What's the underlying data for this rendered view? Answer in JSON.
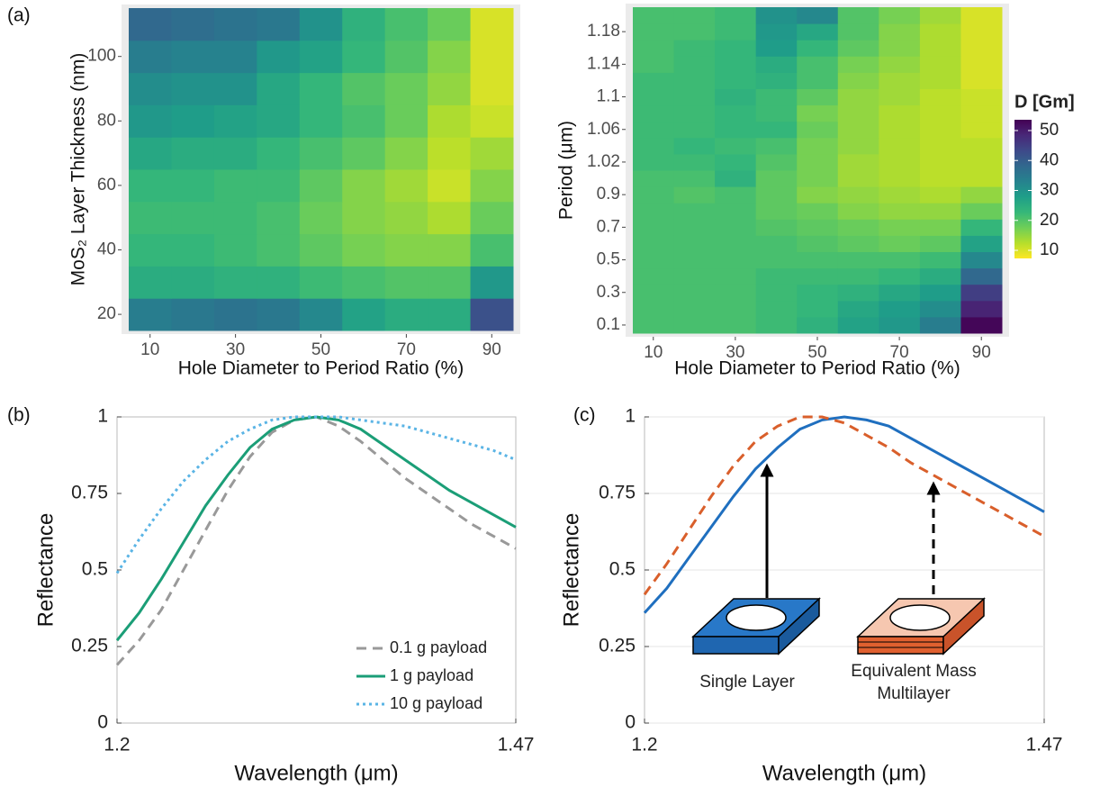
{
  "chart_data": [
    {
      "type": "heatmap",
      "panel_label": "(a)",
      "x_label": "Hole Diameter to Period Ratio (%)",
      "y_label": "MoS₂ Layer Thickness (nm)",
      "x": [
        10,
        20,
        30,
        40,
        50,
        60,
        70,
        80,
        90
      ],
      "xlim": [
        5,
        95
      ],
      "xticks": [
        10,
        30,
        50,
        70,
        90
      ],
      "y": [
        20,
        30,
        40,
        50,
        60,
        70,
        80,
        90,
        100,
        110
      ],
      "ylim": [
        15,
        115
      ],
      "yticks": [
        20,
        40,
        60,
        80,
        100
      ],
      "z": [
        [
          34,
          35,
          36,
          35,
          32,
          27,
          25,
          25,
          42
        ],
        [
          25,
          25,
          24,
          24,
          22,
          21,
          20,
          20,
          29
        ],
        [
          23,
          23,
          22,
          21,
          19,
          17,
          16,
          16,
          21
        ],
        [
          22,
          22,
          22,
          21,
          18,
          16,
          15,
          13,
          18
        ],
        [
          23,
          23,
          22,
          22,
          19,
          16,
          14,
          11,
          16
        ],
        [
          26,
          25,
          25,
          23,
          21,
          19,
          16,
          12,
          14
        ],
        [
          29,
          28,
          27,
          26,
          23,
          21,
          18,
          13,
          11
        ],
        [
          31,
          30,
          30,
          26,
          23,
          20,
          18,
          15,
          10
        ],
        [
          34,
          33,
          33,
          29,
          27,
          23,
          20,
          16,
          10
        ],
        [
          38,
          37,
          36,
          35,
          30,
          24,
          21,
          18,
          10
        ]
      ],
      "zlim": [
        7.3,
        53.6
      ],
      "colorscale": [
        "#fde725",
        "#b5de2b",
        "#6ece58",
        "#35b779",
        "#1f9e89",
        "#26828e",
        "#31688e",
        "#3e4989",
        "#482878",
        "#440154"
      ]
    },
    {
      "type": "heatmap",
      "x_label": "Hole Diameter to Period Ratio (%)",
      "y_label": "Period (μm)",
      "x": [
        10,
        20,
        30,
        40,
        50,
        60,
        70,
        80,
        90
      ],
      "xlim": [
        5,
        95
      ],
      "xticks": [
        10,
        30,
        50,
        70,
        90
      ],
      "y_categories": [
        "0.1",
        null,
        "0.3",
        null,
        "0.5",
        null,
        "0.7",
        null,
        "0.9",
        null,
        "1.02",
        null,
        "1.06",
        null,
        "1.1",
        null,
        "1.14",
        null,
        "1.18",
        null
      ],
      "z": [
        [
          21,
          21,
          21,
          22,
          24,
          27,
          29,
          34,
          53
        ],
        [
          21,
          21,
          21,
          22,
          23,
          26,
          28,
          31,
          49
        ],
        [
          21,
          21,
          21,
          22,
          23,
          24,
          26,
          28,
          45
        ],
        [
          21,
          21,
          21,
          22,
          22,
          22,
          23,
          25,
          38
        ],
        [
          21,
          21,
          21,
          21,
          21,
          21,
          21,
          22,
          32
        ],
        [
          21,
          21,
          21,
          21,
          20,
          19,
          18,
          19,
          27
        ],
        [
          21,
          21,
          21,
          20,
          19,
          18,
          17,
          17,
          23
        ],
        [
          21,
          21,
          21,
          19,
          18,
          16,
          15,
          15,
          18
        ],
        [
          21,
          20,
          21,
          19,
          16,
          15,
          14,
          13,
          15
        ],
        [
          21,
          21,
          24,
          19,
          17,
          14,
          13,
          12,
          12
        ],
        [
          22,
          22,
          23,
          20,
          17,
          14,
          13,
          12,
          12
        ],
        [
          22,
          23,
          22,
          21,
          17,
          15,
          13,
          12,
          12
        ],
        [
          22,
          22,
          23,
          23,
          18,
          15,
          13,
          12,
          11
        ],
        [
          22,
          22,
          23,
          22,
          17,
          15,
          13,
          12,
          11
        ],
        [
          22,
          22,
          24,
          22,
          19,
          15,
          14,
          12,
          11
        ],
        [
          22,
          22,
          23,
          24,
          21,
          16,
          14,
          13,
          10
        ],
        [
          21,
          22,
          23,
          25,
          21,
          17,
          15,
          13,
          10
        ],
        [
          21,
          22,
          23,
          28,
          23,
          19,
          16,
          13,
          10
        ],
        [
          21,
          21,
          22,
          29,
          26,
          20,
          16,
          13,
          10
        ],
        [
          21,
          21,
          22,
          30,
          32,
          20,
          17,
          14,
          10
        ]
      ],
      "zlim": [
        7.3,
        53.6
      ],
      "colorscale": [
        "#fde725",
        "#b5de2b",
        "#6ece58",
        "#35b779",
        "#1f9e89",
        "#26828e",
        "#31688e",
        "#3e4989",
        "#482878",
        "#440154"
      ],
      "colorbar_title": "D [Gm]",
      "colorbar_ticks": [
        10,
        20,
        30,
        40,
        50
      ]
    },
    {
      "type": "line",
      "panel_label": "(b)",
      "x_label": "Wavelength (μm)",
      "y_label": "Reflectance",
      "x": [
        1.2,
        1.215,
        1.23,
        1.245,
        1.26,
        1.275,
        1.29,
        1.305,
        1.32,
        1.335,
        1.35,
        1.365,
        1.38,
        1.395,
        1.41,
        1.425,
        1.44,
        1.455,
        1.47
      ],
      "xlim": [
        1.2,
        1.47
      ],
      "xticks": [
        1.2,
        1.47
      ],
      "ylim": [
        0,
        1
      ],
      "yticks": [
        0,
        0.25,
        0.5,
        0.75,
        1
      ],
      "grid": false,
      "legend": "lower right",
      "series": [
        {
          "name": "0.1 g payload",
          "color": "#999999",
          "dash": "dashed",
          "values": [
            0.19,
            0.27,
            0.37,
            0.5,
            0.63,
            0.76,
            0.87,
            0.95,
            0.99,
            1.0,
            0.97,
            0.92,
            0.86,
            0.8,
            0.75,
            0.7,
            0.65,
            0.61,
            0.57
          ]
        },
        {
          "name": "1 g payload",
          "color": "#1b9e77",
          "dash": "solid",
          "values": [
            0.27,
            0.36,
            0.47,
            0.59,
            0.71,
            0.81,
            0.9,
            0.96,
            0.99,
            1.0,
            0.99,
            0.96,
            0.91,
            0.86,
            0.81,
            0.76,
            0.72,
            0.68,
            0.64
          ]
        },
        {
          "name": "10 g payload",
          "color": "#5ab4e5",
          "dash": "dotted",
          "values": [
            0.49,
            0.6,
            0.7,
            0.79,
            0.86,
            0.92,
            0.96,
            0.99,
            1.0,
            1.0,
            1.0,
            0.99,
            0.98,
            0.97,
            0.95,
            0.93,
            0.91,
            0.89,
            0.86
          ]
        }
      ]
    },
    {
      "type": "line",
      "panel_label": "(c)",
      "x_label": "Wavelength (μm)",
      "y_label": "Reflectance",
      "x": [
        1.2,
        1.215,
        1.23,
        1.245,
        1.26,
        1.275,
        1.29,
        1.305,
        1.32,
        1.335,
        1.35,
        1.365,
        1.38,
        1.395,
        1.41,
        1.425,
        1.44,
        1.455,
        1.47
      ],
      "xlim": [
        1.2,
        1.47
      ],
      "xticks": [
        1.2,
        1.47
      ],
      "ylim": [
        0,
        1
      ],
      "yticks": [
        0,
        0.25,
        0.5,
        0.75,
        1
      ],
      "grid": true,
      "annotations": [
        "Single Layer",
        "Equivalent Mass",
        "Multilayer"
      ],
      "series": [
        {
          "color": "#1f6fbf",
          "dash": "solid",
          "values": [
            0.36,
            0.44,
            0.54,
            0.64,
            0.74,
            0.83,
            0.9,
            0.96,
            0.99,
            1.0,
            0.99,
            0.97,
            0.93,
            0.89,
            0.85,
            0.81,
            0.77,
            0.73,
            0.69
          ]
        },
        {
          "color": "#d95f2b",
          "dash": "dashed",
          "values": [
            0.42,
            0.52,
            0.63,
            0.74,
            0.84,
            0.92,
            0.97,
            1.0,
            1.0,
            0.98,
            0.94,
            0.9,
            0.85,
            0.81,
            0.77,
            0.73,
            0.69,
            0.65,
            0.61
          ]
        }
      ]
    }
  ]
}
